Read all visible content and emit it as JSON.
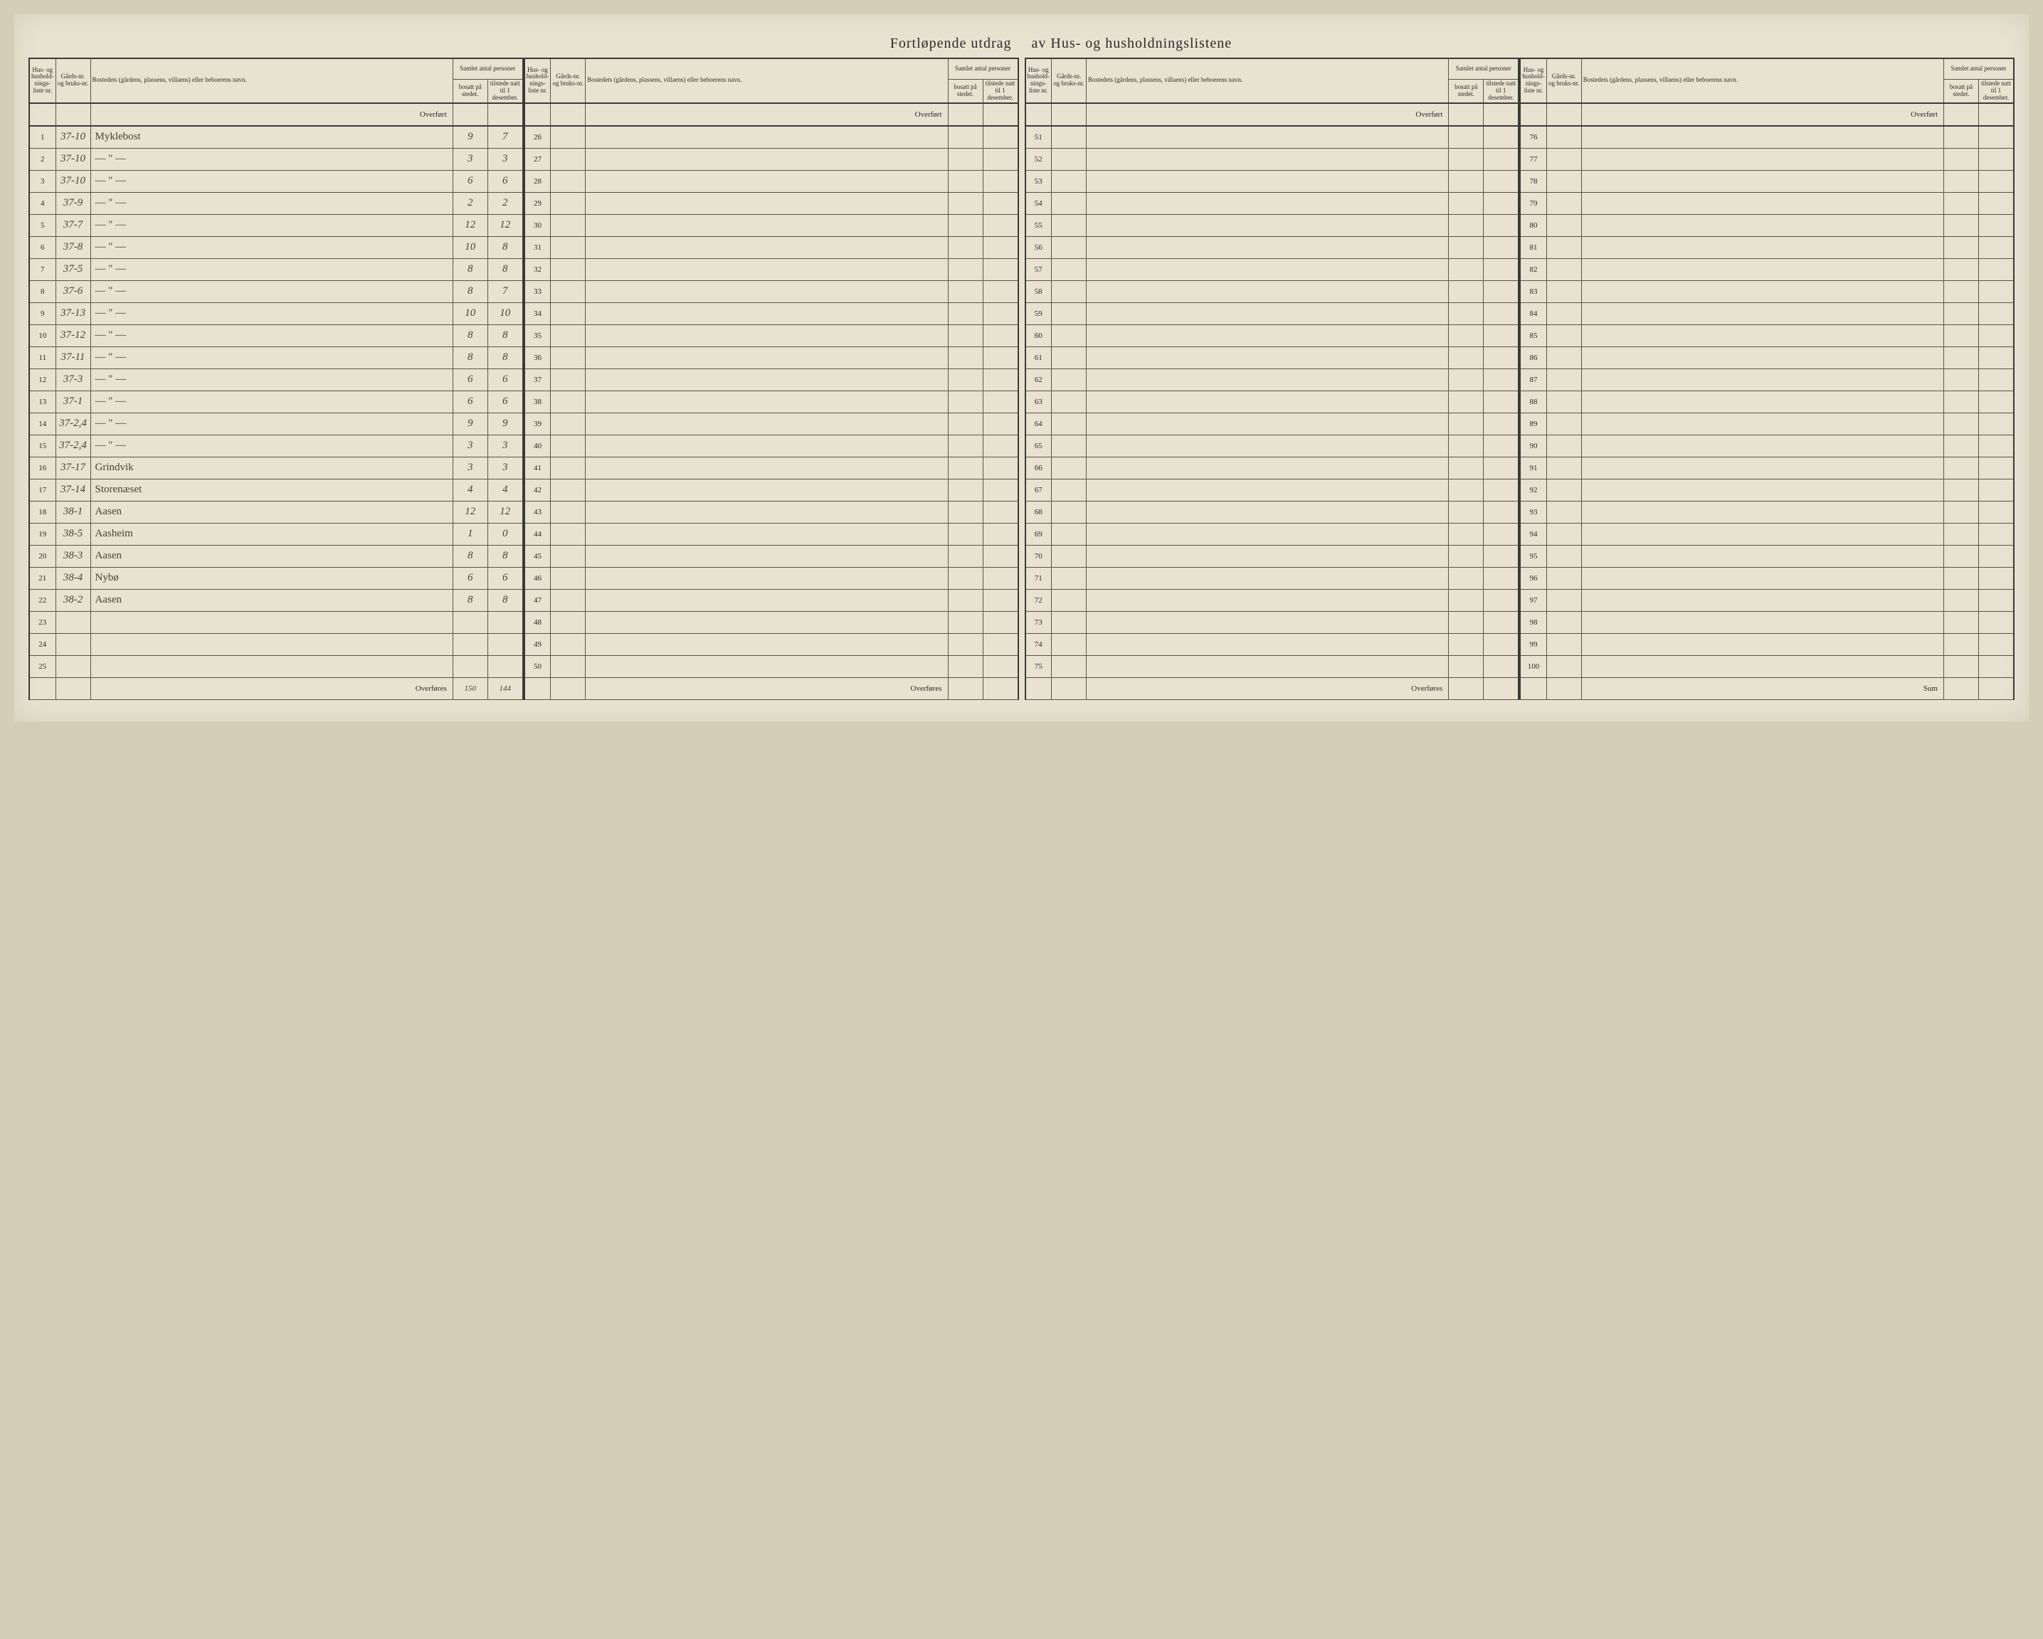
{
  "title_left": "Fortløpende utdrag",
  "title_right": "av Hus- og husholdningslistene",
  "headers": {
    "liste": "Hus- og hushold-nings-liste nr.",
    "gard": "Gårds-nr. og bruks-nr.",
    "navn": "Bostedets (gårdens, plassens, villaens) eller beboerens navn.",
    "samlet": "Samlet antal personer",
    "bosatt": "bosatt på stedet.",
    "tilstede": "tilstede natt til 1 desember."
  },
  "labels": {
    "overfort": "Overført",
    "overfores": "Overføres",
    "sum": "Sum"
  },
  "blocks": [
    {
      "start": 1,
      "end": 25,
      "entries": {
        "1": {
          "gard": "37-10",
          "navn": "Myklebost",
          "bosatt": "9",
          "tilstede": "7"
        },
        "2": {
          "gard": "37-10",
          "navn": "— \" —",
          "bosatt": "3",
          "tilstede": "3"
        },
        "3": {
          "gard": "37-10",
          "navn": "— \" —",
          "bosatt": "6",
          "tilstede": "6"
        },
        "4": {
          "gard": "37-9",
          "navn": "— \" —",
          "bosatt": "2",
          "tilstede": "2"
        },
        "5": {
          "gard": "37-7",
          "navn": "— \" —",
          "bosatt": "12",
          "tilstede": "12"
        },
        "6": {
          "gard": "37-8",
          "navn": "— \" —",
          "bosatt": "10",
          "tilstede": "8"
        },
        "7": {
          "gard": "37-5",
          "navn": "— \" —",
          "bosatt": "8",
          "tilstede": "8"
        },
        "8": {
          "gard": "37-6",
          "navn": "— \" —",
          "bosatt": "8",
          "tilstede": "7"
        },
        "9": {
          "gard": "37-13",
          "navn": "— \" —",
          "bosatt": "10",
          "tilstede": "10"
        },
        "10": {
          "gard": "37-12",
          "navn": "— \" —",
          "bosatt": "8",
          "tilstede": "8"
        },
        "11": {
          "gard": "37-11",
          "navn": "— \" —",
          "bosatt": "8",
          "tilstede": "8"
        },
        "12": {
          "gard": "37-3",
          "navn": "— \" —",
          "bosatt": "6",
          "tilstede": "6"
        },
        "13": {
          "gard": "37-1",
          "navn": "— \" —",
          "bosatt": "6",
          "tilstede": "6"
        },
        "14": {
          "gard": "37-2,4",
          "navn": "— \" —",
          "bosatt": "9",
          "tilstede": "9"
        },
        "15": {
          "gard": "37-2,4",
          "navn": "— \" —",
          "bosatt": "3",
          "tilstede": "3"
        },
        "16": {
          "gard": "37-17",
          "navn": "Grindvik",
          "bosatt": "3",
          "tilstede": "3"
        },
        "17": {
          "gard": "37-14",
          "navn": "Storenæset",
          "bosatt": "4",
          "tilstede": "4"
        },
        "18": {
          "gard": "38-1",
          "navn": "Aasen",
          "bosatt": "12",
          "tilstede": "12"
        },
        "19": {
          "gard": "38-5",
          "navn": "Aasheim",
          "bosatt": "1",
          "tilstede": "0"
        },
        "20": {
          "gard": "38-3",
          "navn": "Aasen",
          "bosatt": "8",
          "tilstede": "8"
        },
        "21": {
          "gard": "38-4",
          "navn": "Nybø",
          "bosatt": "6",
          "tilstede": "6"
        },
        "22": {
          "gard": "38-2",
          "navn": "Aasen",
          "bosatt": "8",
          "tilstede": "8"
        }
      },
      "footer_bosatt": "150",
      "footer_tilstede": "144"
    },
    {
      "start": 26,
      "end": 50,
      "entries": {}
    },
    {
      "start": 51,
      "end": 75,
      "entries": {}
    },
    {
      "start": 76,
      "end": 100,
      "entries": {}
    }
  ]
}
